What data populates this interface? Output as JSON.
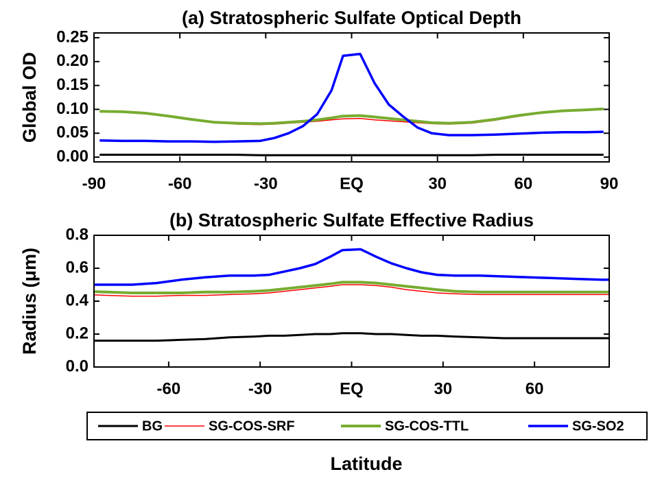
{
  "chart_data": [
    {
      "type": "line",
      "title": "(a) Stratospheric Sulfate Optical Depth",
      "ylabel": "Global OD",
      "x": [
        -88,
        -80,
        -72,
        -64,
        -56,
        -48,
        -40,
        -32,
        -27,
        -22,
        -17,
        -12,
        -7,
        -3,
        3,
        8,
        13,
        18,
        23,
        28,
        34,
        42,
        50,
        58,
        66,
        74,
        82,
        88
      ],
      "xlim": [
        -90,
        90
      ],
      "xticks": [
        -90,
        -60,
        -30,
        {
          "value": 0,
          "label": "EQ"
        },
        30,
        60,
        90
      ],
      "ylim": [
        -0.01,
        0.26
      ],
      "yticks": [
        {
          "value": 0,
          "label": "0.00"
        },
        0.05,
        {
          "value": 0.1,
          "label": "0.10"
        },
        0.15,
        {
          "value": 0.2,
          "label": "0.20"
        },
        0.25
      ],
      "series": [
        {
          "name": "BG",
          "color": "#000000",
          "values": [
            0.005,
            0.005,
            0.005,
            0.005,
            0.005,
            0.005,
            0.005,
            0.004,
            0.004,
            0.004,
            0.004,
            0.004,
            0.004,
            0.004,
            0.004,
            0.004,
            0.004,
            0.004,
            0.004,
            0.004,
            0.004,
            0.004,
            0.005,
            0.005,
            0.005,
            0.005,
            0.005,
            0.005
          ]
        },
        {
          "name": "SG-COS-SRF",
          "color": "#ff0000",
          "values": [
            0.095,
            0.094,
            0.091,
            0.085,
            0.078,
            0.072,
            0.069,
            0.068,
            0.069,
            0.071,
            0.073,
            0.075,
            0.078,
            0.08,
            0.081,
            0.078,
            0.076,
            0.074,
            0.072,
            0.07,
            0.069,
            0.071,
            0.077,
            0.085,
            0.092,
            0.096,
            0.098,
            0.1
          ]
        },
        {
          "name": "SG-COS-TTL",
          "color": "#77ac30",
          "values": [
            0.096,
            0.095,
            0.092,
            0.086,
            0.079,
            0.073,
            0.071,
            0.07,
            0.071,
            0.073,
            0.075,
            0.078,
            0.082,
            0.086,
            0.087,
            0.084,
            0.081,
            0.078,
            0.075,
            0.072,
            0.071,
            0.073,
            0.079,
            0.087,
            0.093,
            0.097,
            0.099,
            0.101
          ]
        },
        {
          "name": "SG-SO2",
          "color": "#0000ff",
          "values": [
            0.035,
            0.034,
            0.034,
            0.033,
            0.033,
            0.032,
            0.033,
            0.034,
            0.04,
            0.05,
            0.065,
            0.09,
            0.14,
            0.212,
            0.216,
            0.155,
            0.11,
            0.085,
            0.062,
            0.05,
            0.046,
            0.046,
            0.047,
            0.049,
            0.051,
            0.052,
            0.052,
            0.053
          ]
        }
      ]
    },
    {
      "type": "line",
      "title": "(b) Stratospheric Sulfate Effective Radius",
      "ylabel": "Radius (μm)",
      "xlabel": "Latitude",
      "x": [
        -88,
        -80,
        -72,
        -64,
        -56,
        -48,
        -40,
        -32,
        -27,
        -22,
        -17,
        -12,
        -7,
        -3,
        3,
        8,
        13,
        18,
        23,
        28,
        34,
        42,
        50,
        58,
        66,
        74,
        82,
        88
      ],
      "xlim": [
        -84.5,
        84.5
      ],
      "xticks": [
        -60,
        -30,
        {
          "value": 0,
          "label": "EQ"
        },
        30,
        60
      ],
      "ylim": [
        0,
        0.8
      ],
      "yticks": [
        {
          "value": 0,
          "label": "0.0"
        },
        {
          "value": 0.2,
          "label": "0.2"
        },
        {
          "value": 0.4,
          "label": "0.4"
        },
        {
          "value": 0.6,
          "label": "0.6"
        },
        {
          "value": 0.8,
          "label": "0.8"
        }
      ],
      "series": [
        {
          "color": "#000000",
          "values": [
            0.16,
            0.16,
            0.16,
            0.16,
            0.165,
            0.17,
            0.18,
            0.185,
            0.19,
            0.19,
            0.195,
            0.2,
            0.2,
            0.205,
            0.205,
            0.2,
            0.2,
            0.195,
            0.19,
            0.19,
            0.185,
            0.18,
            0.175,
            0.175,
            0.175,
            0.175,
            0.175,
            0.175
          ]
        },
        {
          "color": "#ff0000",
          "values": [
            0.44,
            0.435,
            0.43,
            0.43,
            0.435,
            0.435,
            0.44,
            0.445,
            0.45,
            0.46,
            0.47,
            0.48,
            0.49,
            0.5,
            0.5,
            0.495,
            0.485,
            0.47,
            0.46,
            0.45,
            0.445,
            0.44,
            0.44,
            0.44,
            0.44,
            0.44,
            0.44,
            0.44
          ]
        },
        {
          "color": "#77ac30",
          "values": [
            0.46,
            0.455,
            0.45,
            0.45,
            0.45,
            0.455,
            0.455,
            0.46,
            0.465,
            0.475,
            0.485,
            0.495,
            0.505,
            0.515,
            0.515,
            0.51,
            0.5,
            0.49,
            0.48,
            0.47,
            0.46,
            0.455,
            0.455,
            0.455,
            0.455,
            0.455,
            0.455,
            0.455
          ]
        },
        {
          "color": "#0000ff",
          "values": [
            0.5,
            0.5,
            0.5,
            0.51,
            0.53,
            0.545,
            0.555,
            0.555,
            0.56,
            0.58,
            0.6,
            0.625,
            0.67,
            0.71,
            0.715,
            0.67,
            0.63,
            0.6,
            0.575,
            0.56,
            0.555,
            0.555,
            0.55,
            0.545,
            0.54,
            0.535,
            0.53,
            0.53
          ]
        }
      ]
    }
  ]
}
